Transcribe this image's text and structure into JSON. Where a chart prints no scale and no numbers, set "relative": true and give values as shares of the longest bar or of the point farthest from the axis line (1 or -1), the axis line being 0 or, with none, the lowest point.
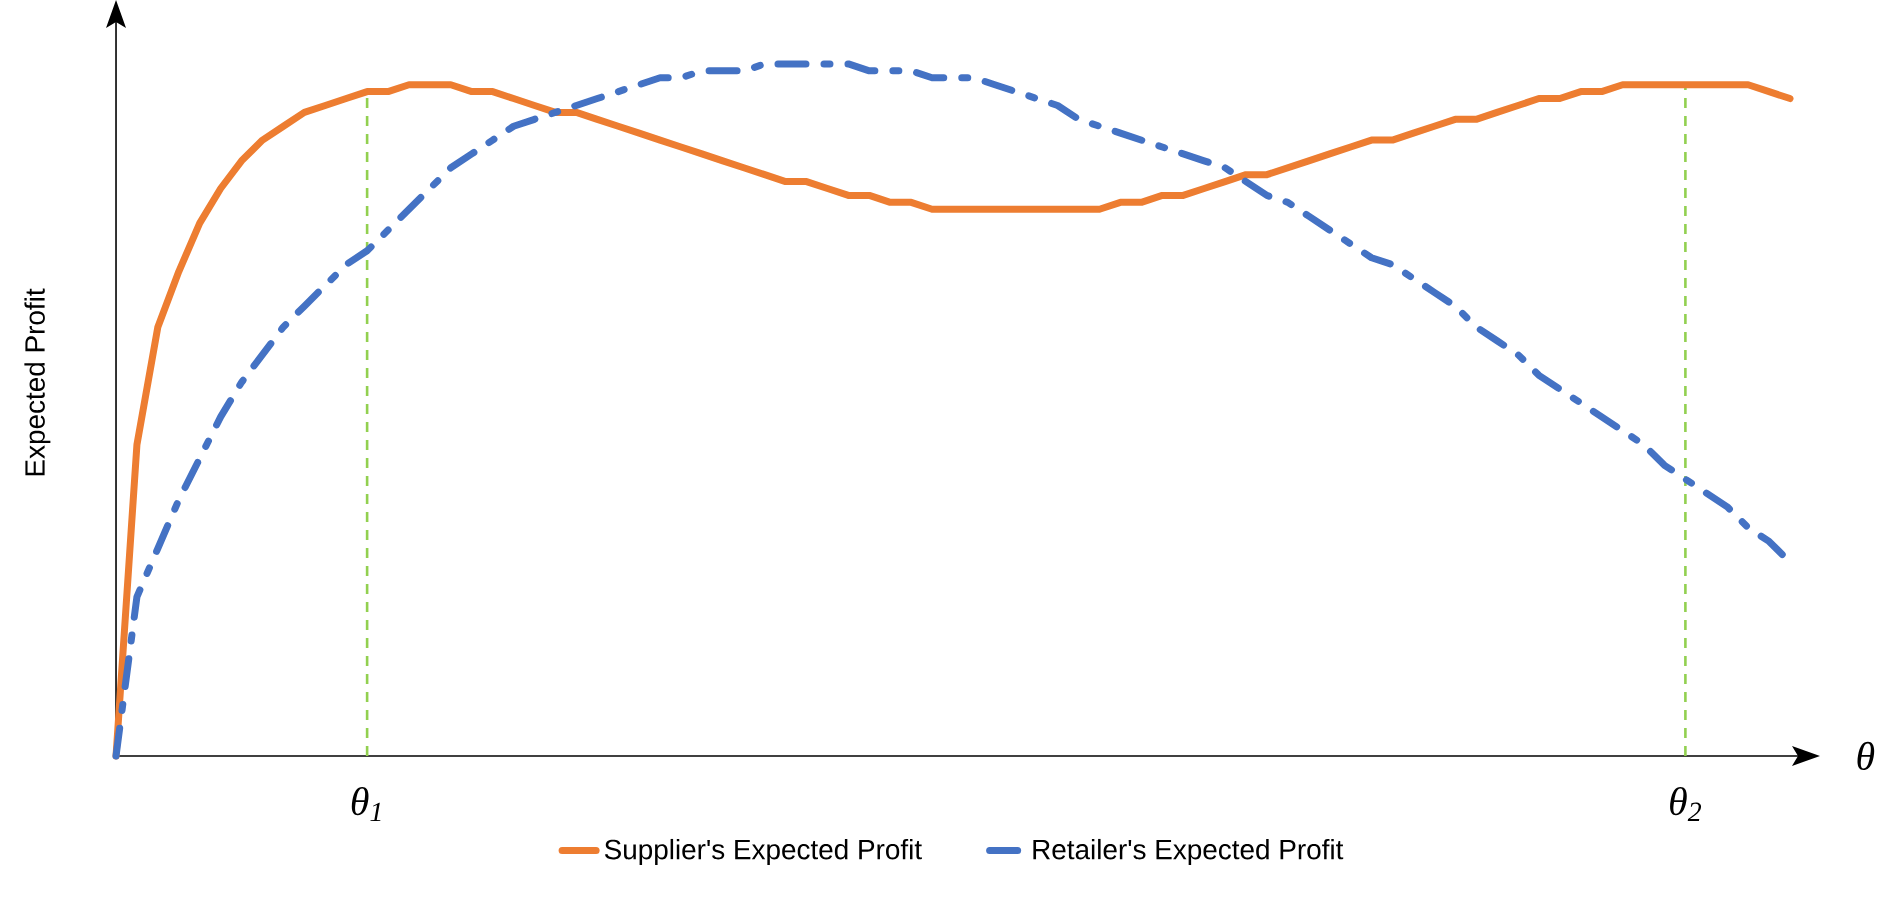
{
  "chart_data": {
    "type": "line",
    "relative": true,
    "ylabel": "Expected Profit",
    "xlabel": "θ",
    "legend": "bottom",
    "marker": "none",
    "categories": [
      null,
      null,
      null,
      null,
      null,
      null,
      null,
      null,
      null,
      null,
      null,
      null,
      "θ$_{1}$",
      null,
      null,
      null,
      null,
      null,
      null,
      null,
      null,
      null,
      null,
      null,
      null,
      null,
      null,
      null,
      null,
      null,
      null,
      null,
      null,
      null,
      null,
      null,
      null,
      null,
      null,
      null,
      null,
      null,
      null,
      null,
      null,
      null,
      null,
      null,
      null,
      null,
      null,
      null,
      null,
      null,
      null,
      null,
      null,
      null,
      null,
      null,
      null,
      null,
      null,
      null,
      null,
      null,
      null,
      null,
      null,
      null,
      null,
      null,
      null,
      null,
      null,
      "θ$_{2}$",
      null,
      null,
      null,
      null,
      null
    ],
    "series": [
      {
        "name": "Supplier's Expected Profit",
        "color": "#ed7d31",
        "line_style": "solid",
        "values": [
          0,
          0.45,
          0.62,
          0.7,
          0.77,
          0.82,
          0.86,
          0.89,
          0.91,
          0.93,
          0.94,
          0.95,
          0.96,
          0.96,
          0.97,
          0.97,
          0.97,
          0.96,
          0.96,
          0.95,
          0.94,
          0.93,
          0.93,
          0.92,
          0.91,
          0.9,
          0.89,
          0.88,
          0.87,
          0.86,
          0.85,
          0.84,
          0.83,
          0.83,
          0.82,
          0.81,
          0.81,
          0.8,
          0.8,
          0.79,
          0.79,
          0.79,
          0.79,
          0.79,
          0.79,
          0.79,
          0.79,
          0.79,
          0.8,
          0.8,
          0.81,
          0.81,
          0.82,
          0.83,
          0.84,
          0.84,
          0.85,
          0.86,
          0.87,
          0.88,
          0.89,
          0.89,
          0.9,
          0.91,
          0.92,
          0.92,
          0.93,
          0.94,
          0.95,
          0.95,
          0.96,
          0.96,
          0.97,
          0.97,
          0.97,
          0.97,
          0.97,
          0.97,
          0.97,
          0.96,
          0.95
        ]
      },
      {
        "name": "Retailer's Expected Profit",
        "color": "#4472c4",
        "line_style": "dashdot",
        "values": [
          0,
          0.23,
          0.3,
          0.37,
          0.43,
          0.49,
          0.54,
          0.58,
          0.62,
          0.65,
          0.68,
          0.71,
          0.73,
          0.76,
          0.79,
          0.82,
          0.85,
          0.87,
          0.89,
          0.91,
          0.92,
          0.93,
          0.94,
          0.95,
          0.96,
          0.97,
          0.98,
          0.98,
          0.99,
          0.99,
          0.99,
          1,
          1,
          1,
          1,
          1,
          0.99,
          0.99,
          0.99,
          0.98,
          0.98,
          0.98,
          0.97,
          0.96,
          0.95,
          0.94,
          0.92,
          0.91,
          0.9,
          0.89,
          0.88,
          0.87,
          0.86,
          0.85,
          0.83,
          0.81,
          0.8,
          0.78,
          0.76,
          0.74,
          0.72,
          0.71,
          0.69,
          0.67,
          0.65,
          0.62,
          0.6,
          0.58,
          0.55,
          0.53,
          0.51,
          0.49,
          0.47,
          0.45,
          0.42,
          0.4,
          0.38,
          0.36,
          0.33,
          0.31,
          0.28
        ]
      }
    ],
    "ref_lines": [
      {
        "axis": "x",
        "value": "θ$_{1}$",
        "color": "#92d050",
        "line_style": "dashed"
      },
      {
        "axis": "x",
        "value": "θ$_{2}$",
        "color": "#92d050",
        "line_style": "dashed"
      }
    ]
  }
}
